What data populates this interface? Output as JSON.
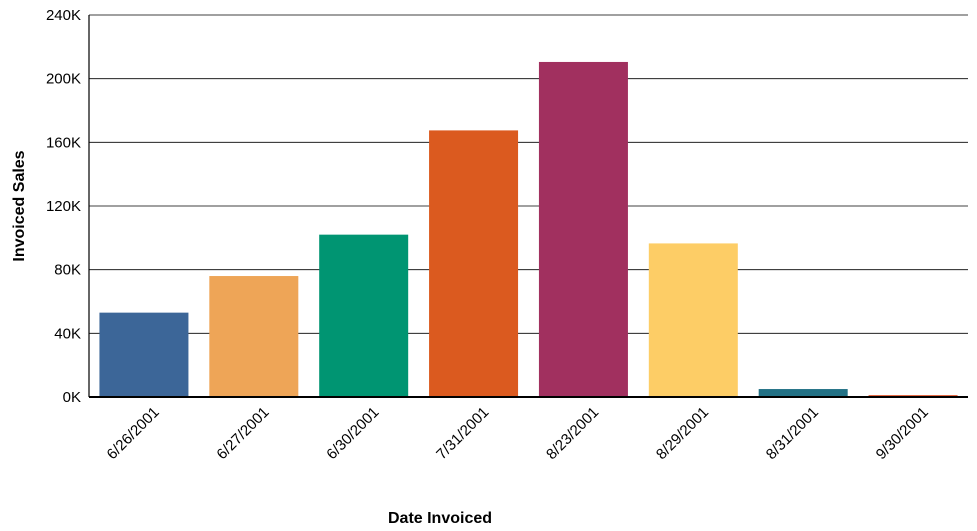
{
  "chart_data": {
    "type": "bar",
    "title": "",
    "xlabel": "Date Invoiced",
    "ylabel": "Invoiced Sales",
    "categories": [
      "6/26/2001",
      "6/27/2001",
      "6/30/2001",
      "7/31/2001",
      "8/23/2001",
      "8/29/2001",
      "8/31/2001",
      "9/30/2001"
    ],
    "values": [
      53000,
      76000,
      102000,
      167500,
      210500,
      96500,
      5000,
      1200
    ],
    "colors": [
      "#3c6698",
      "#eea557",
      "#009572",
      "#db5a1f",
      "#a1305f",
      "#fdcd66",
      "#227185",
      "#e35d35"
    ],
    "ylim": [
      0,
      240000
    ],
    "yticks": [
      0,
      40000,
      80000,
      120000,
      160000,
      200000,
      240000
    ],
    "ytick_labels": [
      "0K",
      "40K",
      "80K",
      "120K",
      "160K",
      "200K",
      "240K"
    ],
    "grid": true,
    "legend": "none"
  }
}
